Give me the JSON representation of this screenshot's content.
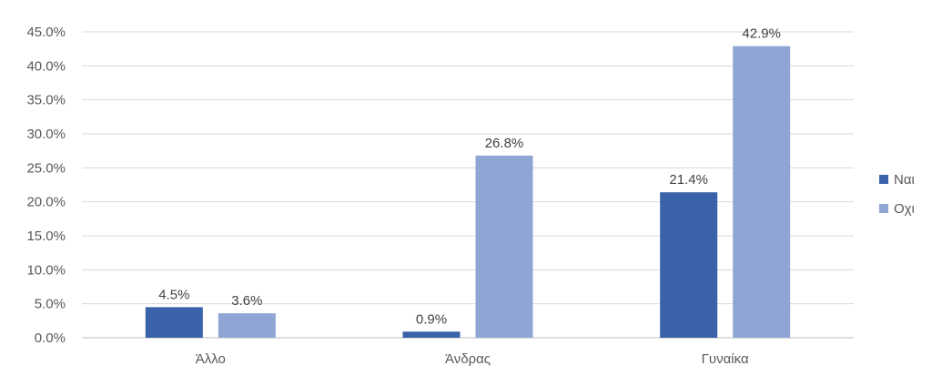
{
  "chart_data": {
    "type": "bar",
    "categories": [
      "Άλλο",
      "Άνδρας",
      "Γυναίκα"
    ],
    "series": [
      {
        "name": "Ναι",
        "values": [
          4.5,
          0.9,
          21.4
        ],
        "labels": [
          "4.5%",
          "0.9%",
          "21.4%"
        ]
      },
      {
        "name": "Οχι",
        "values": [
          3.6,
          26.8,
          42.9
        ],
        "labels": [
          "3.6%",
          "26.8%",
          "42.9%"
        ]
      }
    ],
    "colors": [
      "#3A62A8",
      "#8FA6D4"
    ],
    "ylim": [
      0,
      45
    ],
    "yticks": [
      0,
      5,
      10,
      15,
      20,
      25,
      30,
      35,
      40,
      45
    ],
    "ytick_labels": [
      "0.0%",
      "5.0%",
      "10.0%",
      "15.0%",
      "20.0%",
      "25.0%",
      "30.0%",
      "35.0%",
      "40.0%",
      "45.0%"
    ],
    "grid": true,
    "legend_position": "right"
  }
}
